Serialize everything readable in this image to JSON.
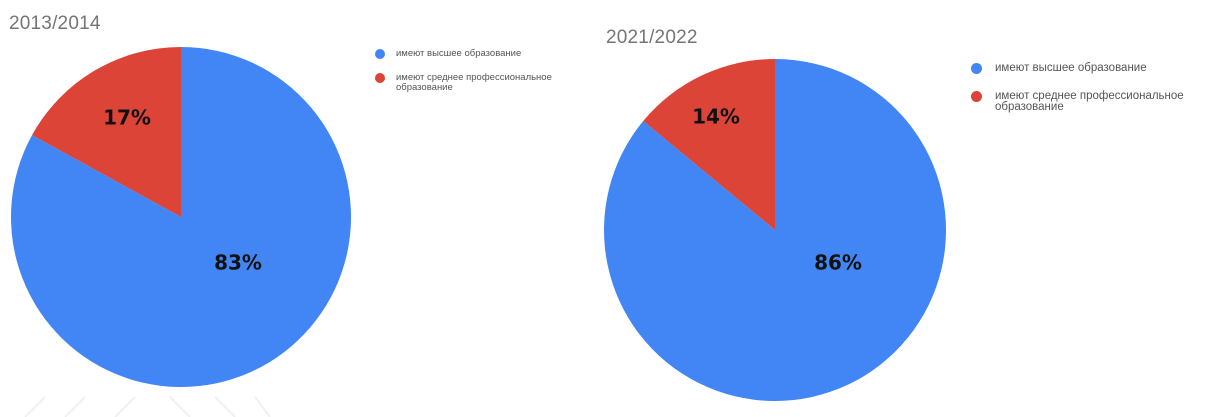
{
  "chart_data": [
    {
      "type": "pie",
      "title": "2013/2014",
      "slices": [
        {
          "label": "имеют высшее образование",
          "value": 83,
          "display": "83%",
          "color": "#4285f4"
        },
        {
          "label": "имеют среднее профессиональное образование",
          "value": 17,
          "display": "17%",
          "color": "#db4437"
        }
      ],
      "legend": {
        "position": "top-right",
        "entries": [
          "имеют высшее образование",
          "имеют среднее профессиональное образование"
        ]
      }
    },
    {
      "type": "pie",
      "title": "2021/2022",
      "slices": [
        {
          "label": "имеют высшее образование",
          "value": 86,
          "display": "86%",
          "color": "#4285f4"
        },
        {
          "label": "имеют среднее профессиональное образование",
          "value": 14,
          "display": "14%",
          "color": "#db4437"
        }
      ],
      "legend": {
        "position": "top-right",
        "entries": [
          "имеют высшее образование",
          "имеют среднее профессиональное образование"
        ]
      }
    }
  ]
}
